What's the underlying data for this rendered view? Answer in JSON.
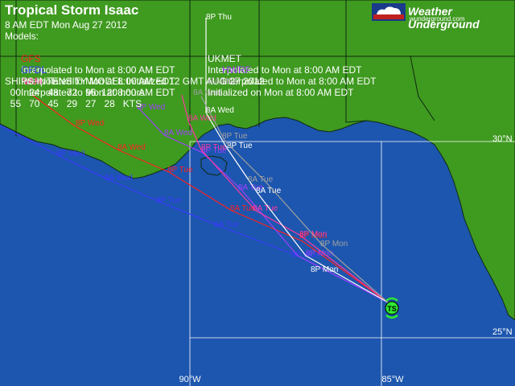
{
  "header": {
    "title": "Tropical Storm Isaac",
    "issued": "8 AM EDT Mon Aug 27 2012",
    "models_label": "Models:",
    "model_rows": [
      {
        "name": "GFS",
        "color": "#ff2020",
        "desc": "Interpolated to Mon at 8:00 AM EDT"
      },
      {
        "name": "UKMET",
        "color": "#ffffff",
        "desc": "Interpolated to Mon at 8:00 AM EDT"
      },
      {
        "name": "GFDL",
        "color": "#3a3aff",
        "desc": "Interpolated to Mon at 8:00 AM EDT"
      },
      {
        "name": "HWRF",
        "color": "#a040ff",
        "desc": "Interpolated to Mon at 8:00 AM EDT"
      },
      {
        "name": "NAM",
        "color": "#ff3aa0",
        "desc": "Interpolated to Mon at 8:00 AM EDT"
      },
      {
        "name": "BAMM",
        "color": "#a0a0a0",
        "desc": "Initialized on Mon at 8:00 AM EDT"
      }
    ],
    "ships_line": "SHIPS INTENSITY MODEL Initialized 12 GMT AUG 27 2012",
    "hours_line": "  00   24   48   72   96  120 hours",
    "kts_line": "  55   70   45   29   27   28   KTS"
  },
  "logo": {
    "name": "Weather Underground",
    "url": "wunderground.com"
  },
  "axes": {
    "lon_labels": [
      "90°W",
      "85°W"
    ],
    "lat_labels": [
      "30°N",
      "25°N"
    ]
  },
  "storm_marker": {
    "label": "TS",
    "color": "#2ee82e"
  },
  "colors": {
    "water": "#1d56ae",
    "land": "#3f9a20",
    "grid": "#ffffff"
  },
  "tracks": [
    {
      "model": "GFDL",
      "color": "#3a3aff",
      "labels": [
        "8P Mon",
        "8A Tue",
        "8P Tue",
        "8A Wed",
        "8P Wed"
      ]
    },
    {
      "model": "GFS",
      "color": "#ff2020",
      "labels": [
        "8P Mon",
        "8A Tue",
        "8P Tue",
        "8A Wed",
        "8P Wed"
      ]
    },
    {
      "model": "HWRF",
      "color": "#a040ff",
      "labels": [
        "8P Mon",
        "8A Tue",
        "8P Tue",
        "8A Wed",
        "8P Wed"
      ]
    },
    {
      "model": "NAM",
      "color": "#ff3aa0",
      "labels": [
        "8P Mon",
        "8A Tue",
        "8P Tue",
        "8A Wed"
      ]
    },
    {
      "model": "UKMET",
      "color": "#ffffff",
      "labels": [
        "8P Mon",
        "8A Tue",
        "8P Tue",
        "8A Wed",
        "8P Thu"
      ]
    },
    {
      "model": "BAMM",
      "color": "#a0a0a0",
      "labels": [
        "8P Mon",
        "8A Tue",
        "8P Tue",
        "8A Wed"
      ]
    }
  ]
}
